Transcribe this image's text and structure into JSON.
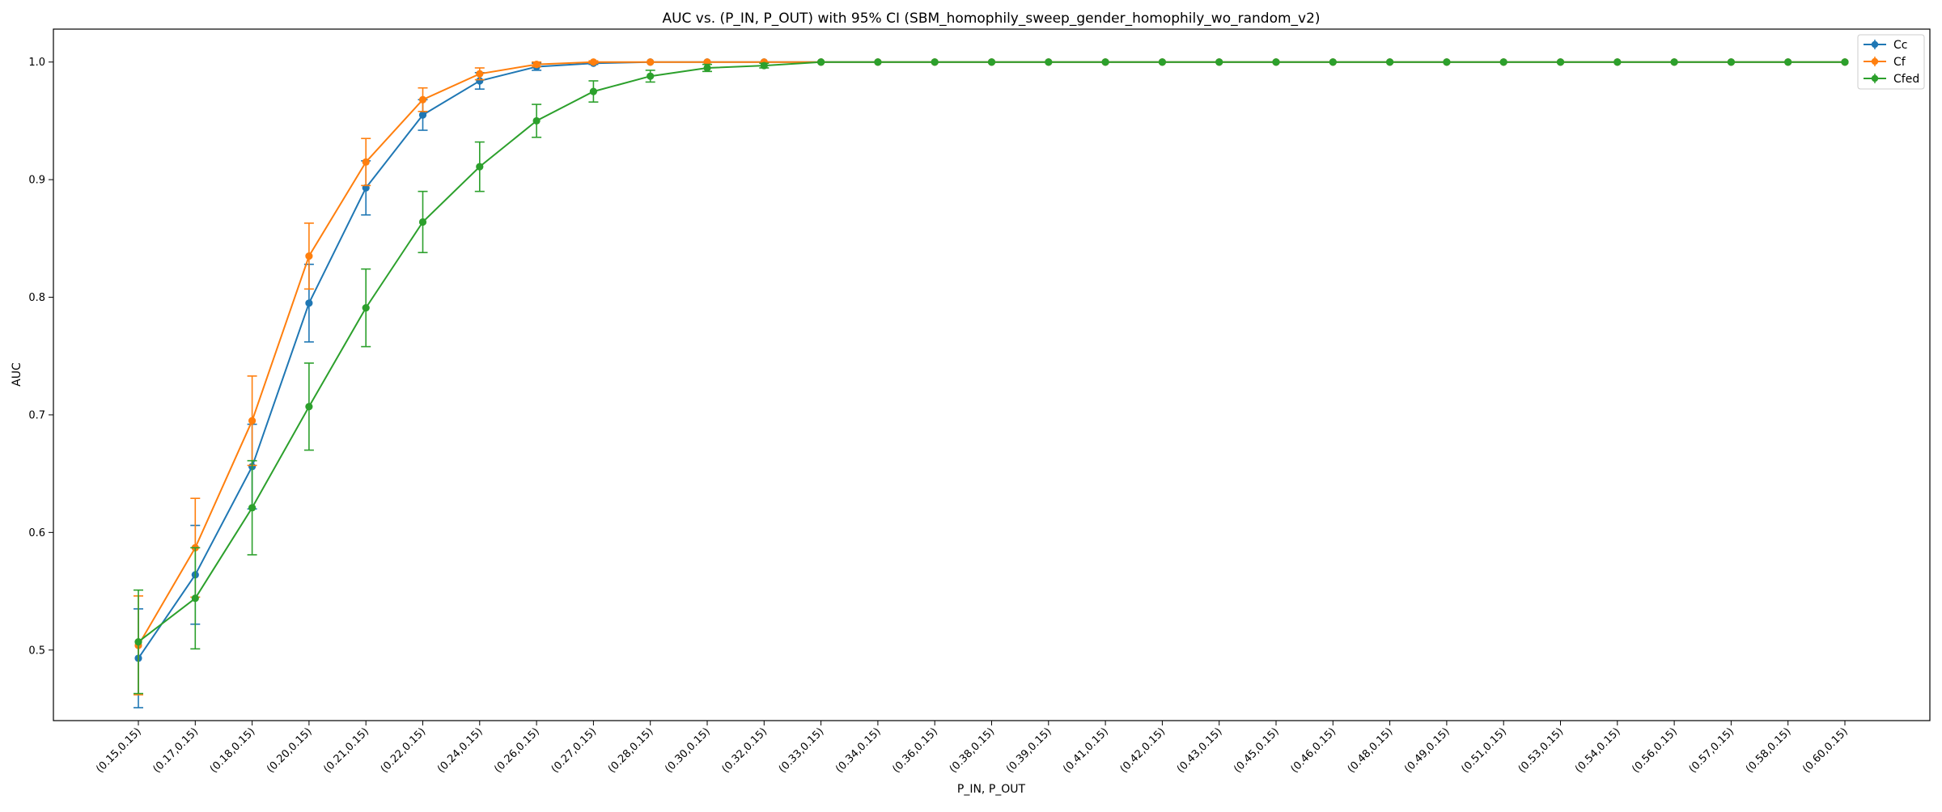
{
  "chart_data": {
    "type": "line",
    "title": "AUC vs. (P_IN, P_OUT) with 95% CI (SBM_homophily_sweep_gender_homophily_wo_random_v2)",
    "xlabel": "P_IN, P_OUT",
    "ylabel": "AUC",
    "ylim": [
      0.44,
      1.028
    ],
    "y_ticks": [
      0.5,
      0.6,
      0.7,
      0.8,
      0.9,
      1.0
    ],
    "y_tick_labels": [
      "0.5",
      "0.6",
      "0.7",
      "0.8",
      "0.9",
      "1.0"
    ],
    "grid": false,
    "legend_position": "top-right",
    "error_bars": "95% CI",
    "categories": [
      "(0.15,0.15)",
      "(0.17,0.15)",
      "(0.18,0.15)",
      "(0.20,0.15)",
      "(0.21,0.15)",
      "(0.22,0.15)",
      "(0.24,0.15)",
      "(0.26,0.15)",
      "(0.27,0.15)",
      "(0.28,0.15)",
      "(0.30,0.15)",
      "(0.32,0.15)",
      "(0.33,0.15)",
      "(0.34,0.15)",
      "(0.36,0.15)",
      "(0.38,0.15)",
      "(0.39,0.15)",
      "(0.41,0.15)",
      "(0.42,0.15)",
      "(0.43,0.15)",
      "(0.45,0.15)",
      "(0.46,0.15)",
      "(0.48,0.15)",
      "(0.49,0.15)",
      "(0.51,0.15)",
      "(0.53,0.15)",
      "(0.54,0.15)",
      "(0.56,0.15)",
      "(0.57,0.15)",
      "(0.58,0.15)",
      "(0.60,0.15)"
    ],
    "series": [
      {
        "name": "Cc",
        "color": "#1f77b4",
        "values": [
          0.493,
          0.564,
          0.656,
          0.795,
          0.893,
          0.955,
          0.984,
          0.996,
          0.999,
          1.0,
          1.0,
          1.0,
          1.0,
          1.0,
          1.0,
          1.0,
          1.0,
          1.0,
          1.0,
          1.0,
          1.0,
          1.0,
          1.0,
          1.0,
          1.0,
          1.0,
          1.0,
          1.0,
          1.0,
          1.0,
          1.0
        ],
        "ci": [
          0.042,
          0.042,
          0.036,
          0.033,
          0.023,
          0.013,
          0.007,
          0.003,
          0.001,
          0,
          0,
          0,
          0,
          0,
          0,
          0,
          0,
          0,
          0,
          0,
          0,
          0,
          0,
          0,
          0,
          0,
          0,
          0,
          0,
          0,
          0
        ]
      },
      {
        "name": "Cf",
        "color": "#ff7f0e",
        "values": [
          0.504,
          0.587,
          0.695,
          0.835,
          0.915,
          0.968,
          0.99,
          0.998,
          1.0,
          1.0,
          1.0,
          1.0,
          1.0,
          1.0,
          1.0,
          1.0,
          1.0,
          1.0,
          1.0,
          1.0,
          1.0,
          1.0,
          1.0,
          1.0,
          1.0,
          1.0,
          1.0,
          1.0,
          1.0,
          1.0,
          1.0
        ],
        "ci": [
          0.042,
          0.042,
          0.038,
          0.028,
          0.02,
          0.01,
          0.005,
          0.002,
          0.001,
          0,
          0,
          0,
          0,
          0,
          0,
          0,
          0,
          0,
          0,
          0,
          0,
          0,
          0,
          0,
          0,
          0,
          0,
          0,
          0,
          0,
          0
        ]
      },
      {
        "name": "Cfed",
        "color": "#2ca02c",
        "values": [
          0.507,
          0.544,
          0.621,
          0.707,
          0.791,
          0.864,
          0.911,
          0.95,
          0.975,
          0.988,
          0.995,
          0.997,
          1.0,
          1.0,
          1.0,
          1.0,
          1.0,
          1.0,
          1.0,
          1.0,
          1.0,
          1.0,
          1.0,
          1.0,
          1.0,
          1.0,
          1.0,
          1.0,
          1.0,
          1.0,
          1.0
        ],
        "ci": [
          0.044,
          0.043,
          0.04,
          0.037,
          0.033,
          0.026,
          0.021,
          0.014,
          0.009,
          0.005,
          0.003,
          0.002,
          0,
          0,
          0,
          0,
          0,
          0,
          0,
          0,
          0,
          0,
          0,
          0,
          0,
          0,
          0,
          0,
          0,
          0,
          0
        ]
      }
    ]
  }
}
